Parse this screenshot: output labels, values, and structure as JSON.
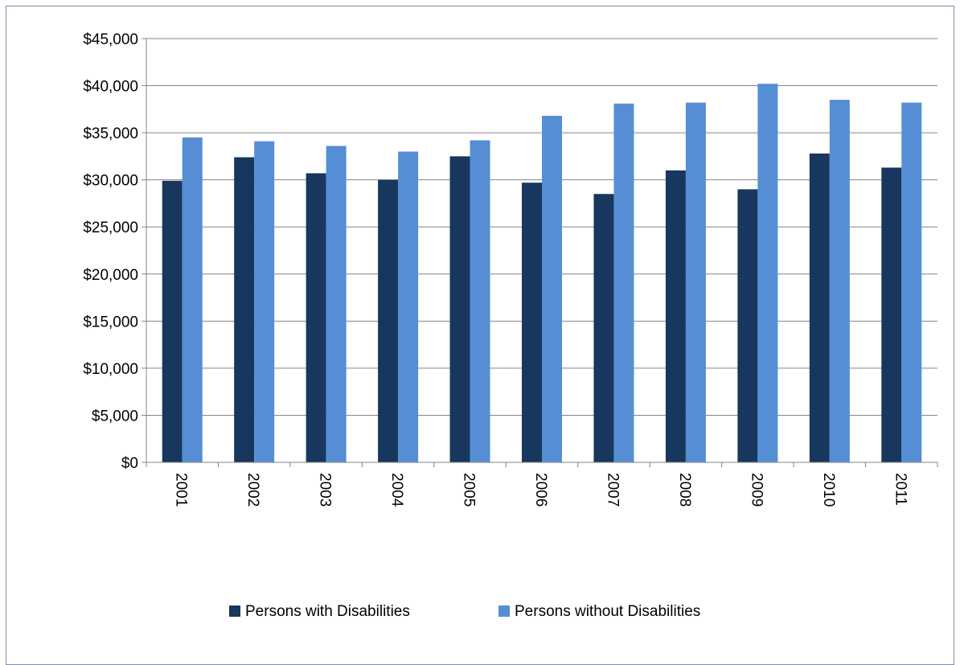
{
  "chart_data": {
    "type": "bar",
    "title": "",
    "xlabel": "",
    "ylabel": "",
    "categories": [
      "2001",
      "2002",
      "2003",
      "2004",
      "2005",
      "2006",
      "2007",
      "2008",
      "2009",
      "2010",
      "2011"
    ],
    "series": [
      {
        "name": "Persons with Disabilities",
        "color": "#17375e",
        "values": [
          29900,
          32400,
          30700,
          30000,
          32500,
          29700,
          28500,
          31000,
          29000,
          32800,
          31300
        ]
      },
      {
        "name": "Persons without Disabilities",
        "color": "#558ed5",
        "values": [
          34500,
          34100,
          33600,
          33000,
          34200,
          36800,
          38100,
          38200,
          40200,
          38500,
          38200
        ]
      }
    ],
    "ylim": [
      0,
      45000
    ],
    "y_ticks": [
      0,
      5000,
      10000,
      15000,
      20000,
      25000,
      30000,
      35000,
      40000,
      45000
    ],
    "y_tick_labels": [
      "$0",
      "$5,000",
      "$10,000",
      "$15,000",
      "$20,000",
      "$25,000",
      "$30,000",
      "$35,000",
      "$40,000",
      "$45,000"
    ],
    "grid": true,
    "legend_position": "bottom"
  }
}
